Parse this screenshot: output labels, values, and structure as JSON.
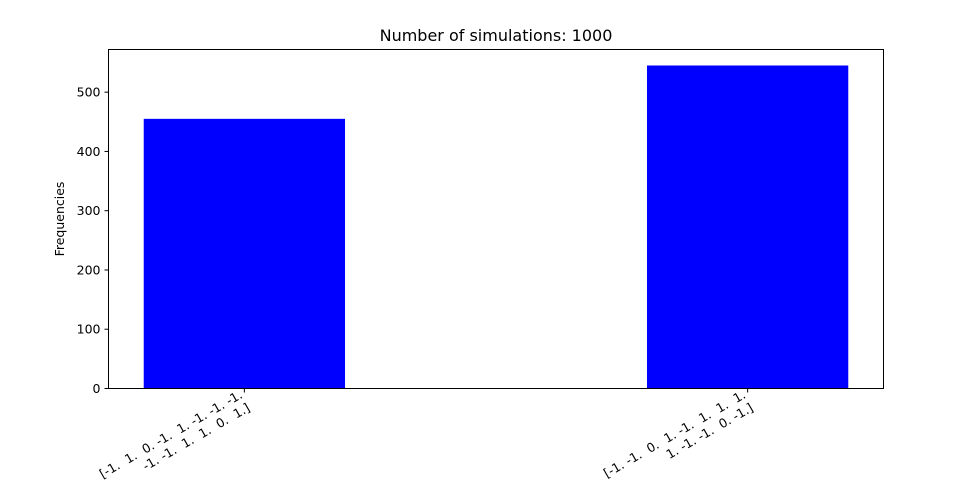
{
  "chart_data": {
    "type": "bar",
    "title": "Number of simulations: 1000",
    "xlabel": "",
    "ylabel": "Frequencies",
    "categories": [
      "[-1.  1.  0. -1.  1. -1. -1. -1.\n -1. -1.  1.  1.  0.  1.]",
      "[-1. -1.  0.  1. -1.  1.  1.  1.\n  1. -1. -1.  0. -1.]"
    ],
    "values": [
      455,
      545
    ],
    "ylim": [
      0,
      572
    ],
    "yticks": [
      0,
      100,
      200,
      300,
      400,
      500
    ],
    "bar_color": "#0000ff",
    "grid": false
  }
}
